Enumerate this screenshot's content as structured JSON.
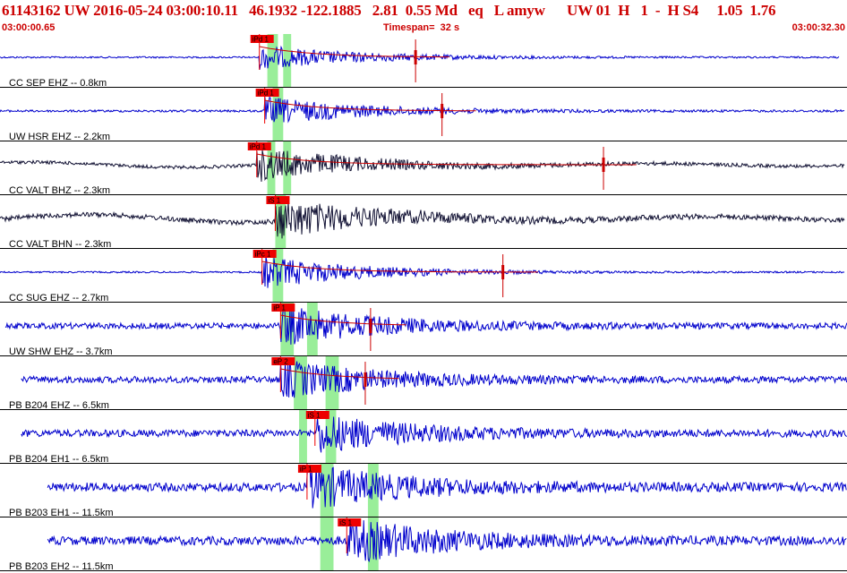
{
  "header": {
    "title": "61143162 UW 2016-05-24 03:00:10.11   46.1932 -122.1885   2.81  0.55 Md   eq   L amyw      UW 01  H   1  -  H S4     1.05  1.76",
    "time_start": "03:00:00.65",
    "timespan": "Timespan=  32 s",
    "time_end": "03:00:32.30"
  },
  "colors": {
    "title": "#cc0000",
    "trace_blue": "#0000cc",
    "trace_dark": "#111133",
    "pick_box": "#ee0000",
    "window_green": "#99ee99",
    "coda": "#cc0000",
    "divider": "#000000"
  },
  "chart_data": {
    "type": "line",
    "x_unit": "s",
    "xlim": [
      0,
      32
    ],
    "traces": [
      {
        "label": "CC SEP EHZ -- 0.8km",
        "color": "blue",
        "start": 0,
        "end": 31.7,
        "pick": "iPd 1",
        "pick_t": 9.8,
        "green": [
          [
            10.1,
            10.5
          ],
          [
            10.7,
            11.0
          ]
        ],
        "coda_t": 15.7,
        "amp": 0.22,
        "noise": 0.06,
        "coda_line": true
      },
      {
        "label": "UW HSR EHZ -- 2.2km",
        "color": "blue",
        "start": 0,
        "end": 31.9,
        "pick": "iPd 1",
        "pick_t": 10.0,
        "green": [
          [
            10.3,
            10.7
          ]
        ],
        "coda_t": 16.7,
        "amp": 0.26,
        "noise": 0.08,
        "coda_line": true
      },
      {
        "label": "CC VALT BHZ -- 2.3km",
        "color": "dark",
        "start": 0,
        "end": 31.9,
        "pick": "iPd 1",
        "pick_t": 9.7,
        "green": [
          [
            10.1,
            10.4
          ],
          [
            10.7,
            11.0
          ]
        ],
        "coda_t": 22.8,
        "amp": 0.3,
        "noise": 0.12,
        "coda_line": true
      },
      {
        "label": "CC VALT BHN -- 2.3km",
        "color": "dark",
        "start": 0,
        "end": 31.9,
        "pick": "iS 1",
        "pick_t": 10.4,
        "green": [
          [
            10.4,
            10.8
          ]
        ],
        "coda_t": null,
        "amp": 0.36,
        "noise": 0.18,
        "coda_line": false
      },
      {
        "label": "CC SUG EHZ -- 2.7km",
        "color": "blue",
        "start": 0,
        "end": 31.9,
        "pick": "iPc 1",
        "pick_t": 9.9,
        "green": [
          [
            10.3,
            10.7
          ]
        ],
        "coda_t": 19.0,
        "amp": 0.3,
        "noise": 0.06,
        "coda_line": true
      },
      {
        "label": "UW SHW EHZ -- 3.7km",
        "color": "blue",
        "start": 0.2,
        "end": 32,
        "pick": "iP 1",
        "pick_t": 10.6,
        "green": [
          [
            10.6,
            11.1
          ],
          [
            11.6,
            12.0
          ]
        ],
        "coda_t": 14.0,
        "amp": 0.34,
        "noise": 0.22,
        "coda_line": true
      },
      {
        "label": "PB B204 EHZ -- 6.5km",
        "color": "blue",
        "start": 0.8,
        "end": 32.5,
        "pick": "eP 2",
        "pick_t": 10.6,
        "green": [
          [
            11.1,
            11.6
          ],
          [
            12.3,
            12.8
          ]
        ],
        "coda_t": 13.8,
        "amp": 0.34,
        "noise": 0.24,
        "coda_line": true
      },
      {
        "label": "PB B204 EH1 -- 6.5km",
        "color": "blue",
        "start": 0.8,
        "end": 32.5,
        "pick": "iS 1",
        "pick_t": 11.9,
        "green": [
          [
            11.3,
            11.6
          ],
          [
            12.3,
            12.7
          ]
        ],
        "coda_t": null,
        "amp": 0.34,
        "noise": 0.26,
        "coda_line": false
      },
      {
        "label": "PB B203 EH1 -- 11.5km",
        "color": "blue",
        "start": 1.8,
        "end": 33.3,
        "pick": "iP 1",
        "pick_t": 11.6,
        "green": [
          [
            12.1,
            12.6
          ],
          [
            13.9,
            14.3
          ]
        ],
        "coda_t": null,
        "amp": 0.38,
        "noise": 0.32,
        "coda_line": false
      },
      {
        "label": "PB B203 EH2 -- 11.5km",
        "color": "blue",
        "start": 1.8,
        "end": 33.3,
        "pick": "iS 1",
        "pick_t": 13.1,
        "green": [
          [
            12.1,
            12.6
          ],
          [
            13.9,
            14.3
          ]
        ],
        "coda_t": null,
        "amp": 0.38,
        "noise": 0.32,
        "coda_line": false
      }
    ]
  }
}
